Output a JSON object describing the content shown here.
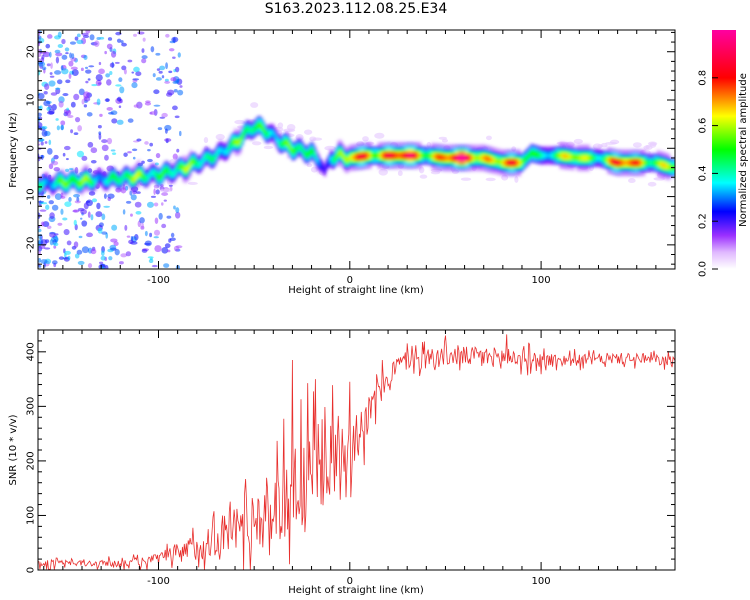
{
  "title": "S163.2023.112.08.25.E34",
  "chart_data": [
    {
      "type": "heatmap",
      "xlabel": "Height of straight line (km)",
      "ylabel": "Frequency (Hz)",
      "xlim": [
        -163,
        170
      ],
      "ylim": [
        -25,
        24.5
      ],
      "x_ticks": [
        -100,
        0,
        100
      ],
      "y_ticks": [
        -20,
        -10,
        0,
        10,
        20
      ],
      "colorbar": {
        "label": "Normalized spectral amplitude",
        "range": [
          0,
          1
        ],
        "ticks": [
          0.0,
          0.2,
          0.4,
          0.6,
          0.8
        ],
        "colors": [
          "#ffffff",
          "#9b30ff",
          "#0000ff",
          "#00ffff",
          "#00ff00",
          "#ffff00",
          "#ff0000",
          "#ff00a0"
        ]
      },
      "ridge": {
        "x": [
          -160,
          -150,
          -140,
          -130,
          -120,
          -110,
          -100,
          -90,
          -80,
          -70,
          -60,
          -55,
          -50,
          -45,
          -40,
          -35,
          -30,
          -25,
          -20,
          -15,
          -13,
          -10,
          -5,
          0,
          10,
          20,
          30,
          40,
          50,
          60,
          70,
          80,
          90,
          95,
          100,
          110,
          120,
          130,
          140,
          150,
          160,
          168
        ],
        "freq": [
          -7.5,
          -7,
          -6.8,
          -6.5,
          -6.2,
          -5.8,
          -5.5,
          -4.5,
          -3,
          -1.5,
          1,
          3,
          4.5,
          4,
          2.5,
          1,
          0,
          -0.5,
          -1,
          -3,
          -5,
          -2,
          -1.5,
          -2,
          -1.5,
          -1.5,
          -1.5,
          -1.5,
          -2,
          -2,
          -2,
          -3,
          -3,
          -1,
          -1.5,
          -1.5,
          -2,
          -2,
          -3,
          -3,
          -3,
          -4
        ],
        "amplitude": [
          0.5,
          0.55,
          0.55,
          0.5,
          0.5,
          0.55,
          0.6,
          0.5,
          0.55,
          0.5,
          0.5,
          0.5,
          0.55,
          0.6,
          0.55,
          0.5,
          0.5,
          0.5,
          0.5,
          0.4,
          0.35,
          0.45,
          0.55,
          0.7,
          0.9,
          0.9,
          0.85,
          0.75,
          0.9,
          0.9,
          0.85,
          0.8,
          0.65,
          0.6,
          0.5,
          0.55,
          0.7,
          0.6,
          0.8,
          0.8,
          0.7,
          0.6
        ]
      }
    },
    {
      "type": "line",
      "xlabel": "Height of straight line (km)",
      "ylabel": "SNR (10 * v/v)",
      "xlim": [
        -163,
        170
      ],
      "ylim": [
        0,
        440
      ],
      "x_ticks": [
        -100,
        0,
        100
      ],
      "y_ticks": [
        0,
        100,
        200,
        300,
        400
      ],
      "color": "#e8302e",
      "envelope": {
        "x": [
          -163,
          -130,
          -110,
          -100,
          -90,
          -80,
          -70,
          -60,
          -50,
          -40,
          -35,
          -30,
          -25,
          -20,
          -15,
          -10,
          -5,
          0,
          5,
          10,
          15,
          20,
          25,
          30,
          40,
          50,
          60,
          80,
          100,
          120,
          140,
          160,
          170
        ],
        "mean": [
          12,
          12,
          14,
          20,
          30,
          42,
          60,
          78,
          95,
          115,
          130,
          150,
          160,
          175,
          190,
          205,
          220,
          235,
          255,
          285,
          320,
          355,
          375,
          385,
          390,
          392,
          392,
          390,
          385,
          385,
          388,
          385,
          382
        ],
        "spread": [
          6,
          6,
          8,
          12,
          18,
          25,
          35,
          45,
          55,
          65,
          75,
          85,
          90,
          85,
          80,
          70,
          60,
          55,
          45,
          35,
          28,
          22,
          20,
          18,
          18,
          18,
          18,
          18,
          14,
          10,
          10,
          10,
          10
        ]
      },
      "spikes": [
        {
          "x": -30,
          "y": 385
        },
        {
          "x": -18,
          "y": 350
        },
        {
          "x": 0,
          "y": 345
        },
        {
          "x": 50,
          "y": 430
        },
        {
          "x": 82,
          "y": 432
        }
      ]
    }
  ]
}
